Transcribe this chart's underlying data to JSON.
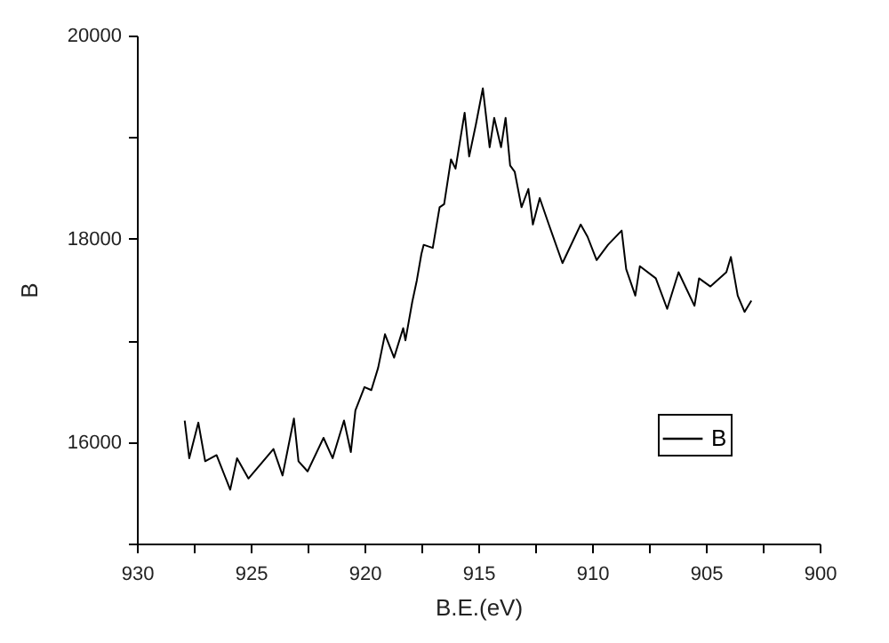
{
  "chart_data": {
    "type": "line",
    "xlabel": "B.E.(eV)",
    "ylabel": "B",
    "xlim": [
      930,
      900
    ],
    "xticks": [
      930,
      {
        "value": 927.5,
        "label": null
      },
      925,
      {
        "value": 922.5,
        "label": null
      },
      920,
      {
        "value": 917.5,
        "label": null
      },
      915,
      {
        "value": 912.5,
        "label": null
      },
      910,
      {
        "value": 907.5,
        "label": null
      },
      905,
      {
        "value": 902.5,
        "label": null
      },
      900
    ],
    "ylim": [
      15000,
      20000
    ],
    "yticks": [
      {
        "value": 15000,
        "label": null
      },
      16000,
      {
        "value": 17000,
        "label": null
      },
      18000,
      {
        "value": 19000,
        "label": null
      },
      20000
    ],
    "x": [
      927.9,
      927.7,
      927.3,
      927.0,
      926.5,
      925.9,
      925.6,
      925.1,
      924.0,
      923.6,
      923.1,
      922.9,
      922.5,
      921.8,
      921.4,
      920.9,
      920.6,
      920.4,
      920.0,
      919.7,
      919.4,
      919.1,
      918.7,
      918.3,
      918.2,
      917.9,
      917.7,
      917.5,
      917.4,
      917.0,
      916.7,
      916.5,
      916.2,
      916.0,
      915.6,
      915.4,
      915.1,
      914.8,
      914.5,
      914.3,
      914.0,
      913.8,
      913.6,
      913.4,
      913.1,
      912.8,
      912.6,
      912.3,
      911.9,
      911.3,
      910.5,
      910.2,
      909.8,
      909.3,
      908.7,
      908.5,
      908.1,
      907.9,
      907.2,
      906.7,
      906.2,
      905.5,
      905.3,
      904.8,
      904.1,
      903.9,
      903.6,
      903.3,
      903.0
    ],
    "series": [
      {
        "name": "B",
        "color": "#000000",
        "values": [
          16210,
          15840,
          16190,
          15810,
          15870,
          15530,
          15840,
          15640,
          15930,
          15670,
          16230,
          15810,
          15710,
          16040,
          15840,
          16210,
          15900,
          16310,
          16540,
          16510,
          16730,
          17060,
          16830,
          17120,
          17000,
          17380,
          17590,
          17850,
          17940,
          17910,
          18310,
          18340,
          18780,
          18690,
          19240,
          18810,
          19130,
          19480,
          18900,
          19190,
          18900,
          19190,
          18720,
          18660,
          18310,
          18490,
          18140,
          18400,
          18140,
          17760,
          18140,
          18020,
          17790,
          17940,
          18080,
          17700,
          17440,
          17730,
          17610,
          17310,
          17670,
          17340,
          17610,
          17530,
          17670,
          17820,
          17440,
          17280,
          17390
        ]
      }
    ],
    "legend": "bottom right",
    "grid": false,
    "marker": "none",
    "line_style": "solid"
  }
}
